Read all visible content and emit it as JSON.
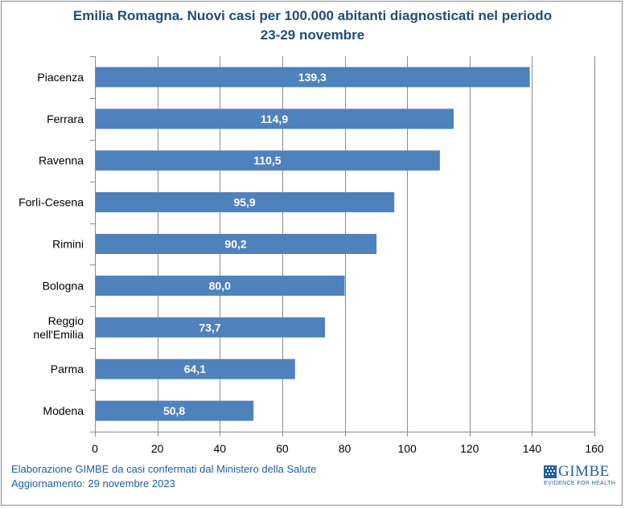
{
  "title_line1": "Emilia Romagna. Nuovi casi per 100.000 abitanti diagnosticati nel periodo",
  "title_line2": "23-29 novembre",
  "chart_data": {
    "type": "bar",
    "orientation": "horizontal",
    "categories": [
      "Piacenza",
      "Ferrara",
      "Ravenna",
      "Forlì-Cesena",
      "Rimini",
      "Bologna",
      "Reggio nell'Emilia",
      "Parma",
      "Modena"
    ],
    "category_lines": [
      [
        "Piacenza"
      ],
      [
        "Ferrara"
      ],
      [
        "Ravenna"
      ],
      [
        "Forlì-Cesena"
      ],
      [
        "Rimini"
      ],
      [
        "Bologna"
      ],
      [
        "Reggio",
        "nell'Emilia"
      ],
      [
        "Parma"
      ],
      [
        "Modena"
      ]
    ],
    "values": [
      139.3,
      114.9,
      110.5,
      95.9,
      90.2,
      80.0,
      73.7,
      64.1,
      50.8
    ],
    "value_labels": [
      "139,3",
      "114,9",
      "110,5",
      "95,9",
      "90,2",
      "80,0",
      "73,7",
      "64,1",
      "50,8"
    ],
    "xlim": [
      0,
      160
    ],
    "xticks": [
      0,
      20,
      40,
      60,
      80,
      100,
      120,
      140,
      160
    ],
    "grid": "vertical",
    "bar_color": "#4f81bd",
    "grid_color": "#8c8c8c",
    "label_color": "#ffffff"
  },
  "footer": {
    "line1": "Elaborazione GIMBE da casi confermati dal Ministero della Salute",
    "line2": "Aggiornamento: 29 novembre 2023"
  },
  "logo": {
    "word": "GIMBE",
    "tagline": "EVIDENCE FOR HEALTH",
    "icon": "gimbe-grid-logo-icon"
  }
}
